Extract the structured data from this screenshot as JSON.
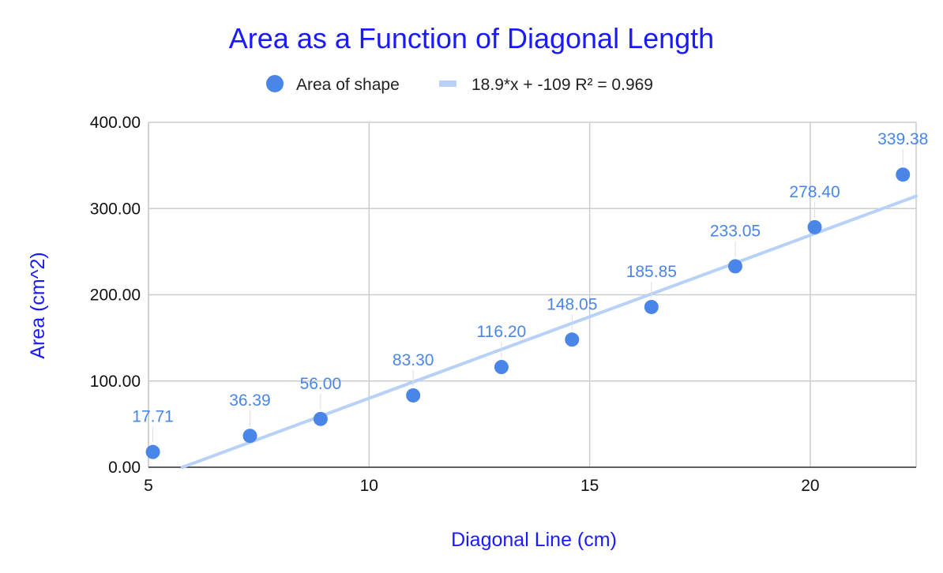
{
  "chart_data": {
    "type": "scatter",
    "title": "Area as a Function of Diagonal Length",
    "xlabel": "Diagonal Line (cm)",
    "ylabel": "Area (cm^2)",
    "xlim": [
      5,
      22.4
    ],
    "ylim": [
      0,
      400
    ],
    "x_ticks": [
      "5",
      "10",
      "15",
      "20"
    ],
    "x_tick_values": [
      5,
      10,
      15,
      20
    ],
    "y_ticks": [
      "0.00",
      "100.00",
      "200.00",
      "300.00",
      "400.00"
    ],
    "y_tick_values": [
      0,
      100,
      200,
      300,
      400
    ],
    "grid": true,
    "legend_position": "top",
    "series": [
      {
        "name": "Area of shape",
        "color": "#4a86e8",
        "points": [
          {
            "x": 5.1,
            "y": 17.71,
            "label": "17.71"
          },
          {
            "x": 7.3,
            "y": 36.39,
            "label": "36.39"
          },
          {
            "x": 8.9,
            "y": 56.0,
            "label": "56.00"
          },
          {
            "x": 11.0,
            "y": 83.3,
            "label": "83.30"
          },
          {
            "x": 13.0,
            "y": 116.2,
            "label": "116.20"
          },
          {
            "x": 14.6,
            "y": 148.05,
            "label": "148.05"
          },
          {
            "x": 16.4,
            "y": 185.85,
            "label": "185.85"
          },
          {
            "x": 18.3,
            "y": 233.05,
            "label": "233.05"
          },
          {
            "x": 20.1,
            "y": 278.4,
            "label": "278.40"
          },
          {
            "x": 22.1,
            "y": 339.38,
            "label": "339.38"
          }
        ]
      }
    ],
    "trendline": {
      "name": "18.9*x + -109 R² = 0.969",
      "slope": 18.9,
      "intercept": -109,
      "r_squared": 0.969,
      "color": "#b7d1f7"
    },
    "colors": {
      "title": "#1a1aff",
      "axis_label": "#1a1aff",
      "data_label": "#4a86e8",
      "grid": "#cccccc"
    }
  }
}
